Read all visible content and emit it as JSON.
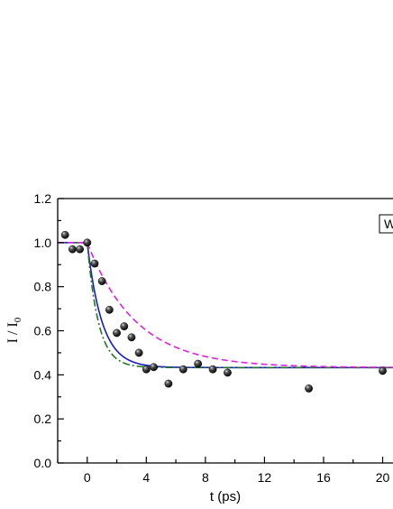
{
  "chart_data": {
    "type": "scatter",
    "title": "",
    "xlabel": "t (ps)",
    "ylabel_main": "I / I",
    "ylabel_sub": "0",
    "xlim": [
      -2,
      20.7
    ],
    "ylim": [
      0,
      1.2
    ],
    "x_ticks": [
      0,
      4,
      8,
      12,
      16,
      20
    ],
    "x_tick_labels": [
      "0",
      "4",
      "8",
      "12",
      "16",
      "20"
    ],
    "y_ticks": [
      0,
      0.2,
      0.4,
      0.6,
      0.8,
      1.0,
      1.2
    ],
    "y_tick_labels": [
      "0.0",
      "0.2",
      "0.4",
      "0.6",
      "0.8",
      "1.0",
      "1.2"
    ],
    "legend_visible_text": "W",
    "legend_placement": "top-right",
    "grid": false,
    "series": [
      {
        "kind": "points",
        "color": "#111111",
        "points": [
          [
            -1.5,
            1.035
          ],
          [
            -1.0,
            0.97
          ],
          [
            -0.5,
            0.97
          ],
          [
            0.0,
            1.0
          ],
          [
            0.5,
            0.905
          ],
          [
            1.0,
            0.825
          ],
          [
            1.5,
            0.695
          ],
          [
            2.0,
            0.59
          ],
          [
            2.5,
            0.62
          ],
          [
            3.0,
            0.57
          ],
          [
            3.5,
            0.5
          ],
          [
            4.0,
            0.425
          ],
          [
            4.5,
            0.435
          ],
          [
            5.5,
            0.36
          ],
          [
            6.5,
            0.425
          ],
          [
            7.5,
            0.45
          ],
          [
            8.5,
            0.425
          ],
          [
            9.5,
            0.41
          ],
          [
            15.0,
            0.338
          ],
          [
            20.0,
            0.418
          ]
        ]
      },
      {
        "kind": "fit",
        "style": "solid",
        "color": "#1a1ac8",
        "t0": 0,
        "y0": 1.0,
        "yinf": 0.433,
        "tau": 1.0
      },
      {
        "kind": "fit",
        "style": "dash-dot",
        "color": "#1f7a1f",
        "t0": 0,
        "y0": 1.0,
        "yinf": 0.433,
        "tau": 0.75
      },
      {
        "kind": "fit",
        "style": "dashed",
        "color": "#e020e0",
        "t0": 0,
        "y0": 1.0,
        "yinf": 0.433,
        "tau": 3.3
      }
    ]
  }
}
